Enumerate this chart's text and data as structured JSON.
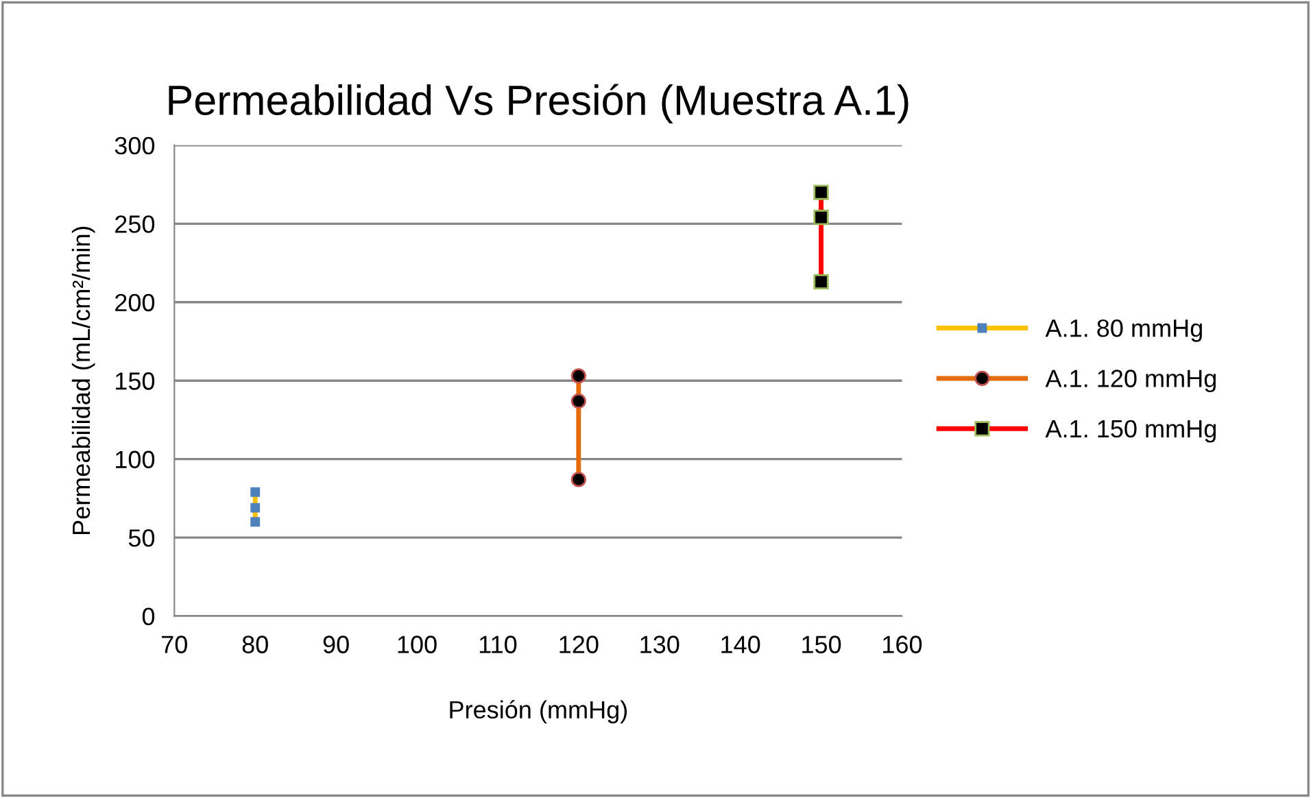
{
  "chart_data": {
    "type": "line",
    "title": "Permeabilidad Vs Presión (Muestra A.1)",
    "xlabel": "Presión (mmHg)",
    "ylabel": "Permeabilidad (mL/cm²/min)",
    "xlim": [
      70,
      160
    ],
    "xticks": [
      70,
      80,
      90,
      100,
      110,
      120,
      130,
      140,
      150,
      160
    ],
    "ylim": [
      0,
      300
    ],
    "yticks": [
      0,
      50,
      100,
      150,
      200,
      250,
      300
    ],
    "grid": "y",
    "legend": "right",
    "series": [
      {
        "name": "A.1. 80 mmHg",
        "color": "#ffc000",
        "marker": "square",
        "x": [
          80,
          80,
          80
        ],
        "values": [
          79,
          69,
          60
        ]
      },
      {
        "name": "A.1. 120 mmHg",
        "color": "#e46c0a",
        "marker": "circle",
        "x": [
          120,
          120,
          120
        ],
        "values": [
          153,
          137,
          87
        ]
      },
      {
        "name": "A.1. 150 mmHg",
        "color": "#ff0000",
        "marker": "square",
        "x": [
          150,
          150,
          150
        ],
        "values": [
          270,
          254,
          213
        ]
      }
    ]
  }
}
